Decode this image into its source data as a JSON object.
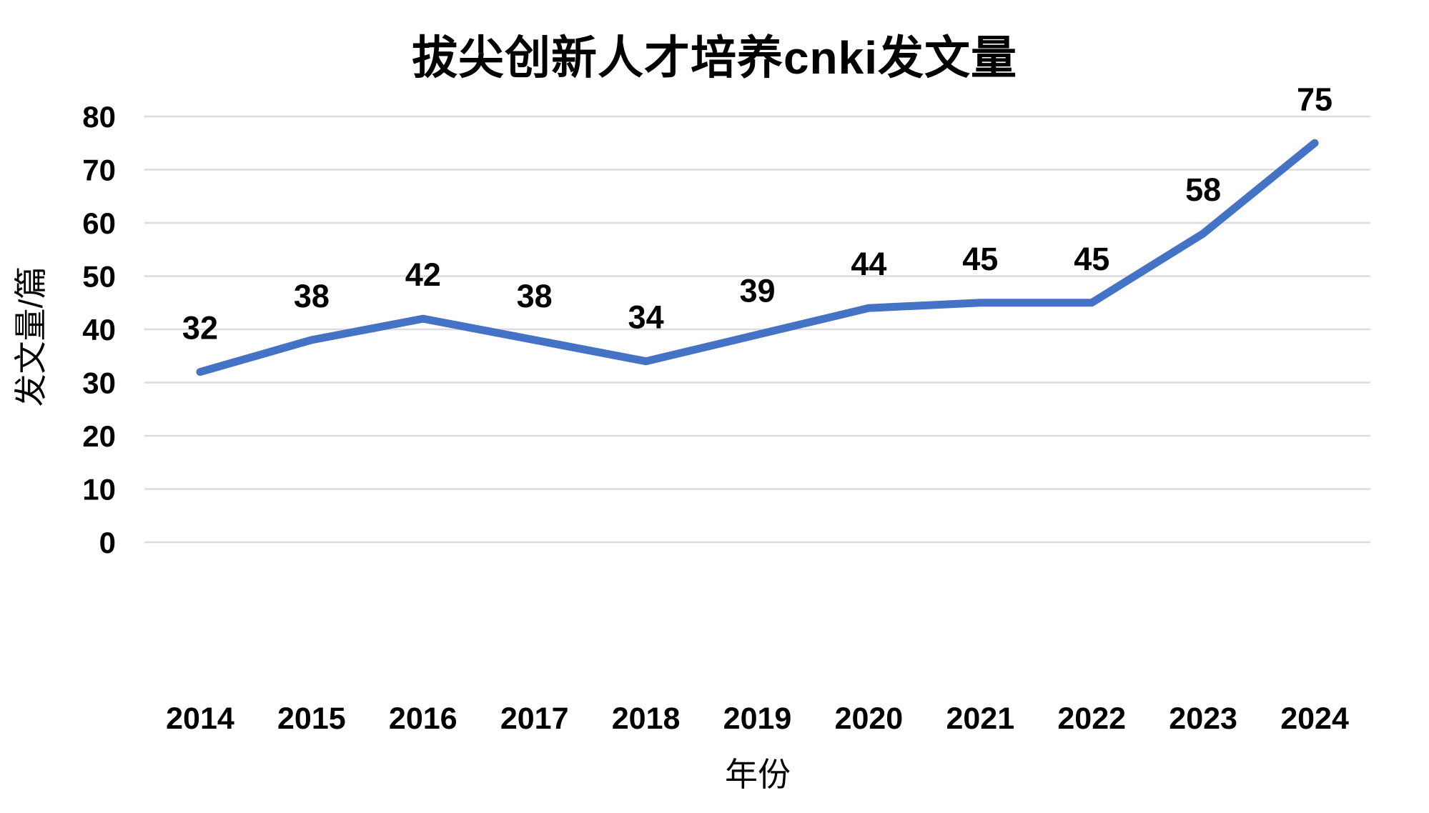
{
  "chart_data": {
    "type": "line",
    "title": "拔尖创新人才培养cnki发文量",
    "xlabel": "年份",
    "ylabel": "发文量/篇",
    "categories": [
      "2014",
      "2015",
      "2016",
      "2017",
      "2018",
      "2019",
      "2020",
      "2021",
      "2022",
      "2023",
      "2024"
    ],
    "values": [
      32,
      38,
      42,
      38,
      34,
      39,
      44,
      45,
      45,
      58,
      75
    ],
    "ylim": [
      0,
      80
    ],
    "yticks": [
      0,
      10,
      20,
      30,
      40,
      50,
      60,
      70,
      80
    ],
    "grid": "horizontal",
    "legend": "none",
    "data_labels_position": "above",
    "colors": {
      "line": "#4472C4",
      "grid": "#DCDCDC",
      "text": "#000000",
      "background": "#FFFFFF"
    }
  }
}
